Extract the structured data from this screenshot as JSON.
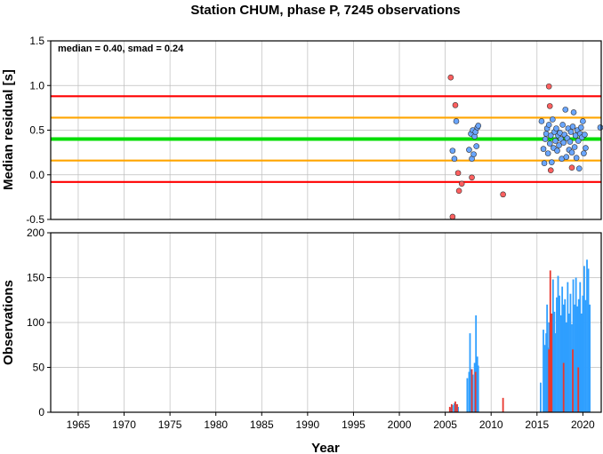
{
  "chart_data": [
    {
      "type": "scatter",
      "title": "Station CHUM, phase P, 7245 observations",
      "xlabel": "",
      "ylabel": "Median residual [s]",
      "xlim": [
        1962,
        2022
      ],
      "ylim": [
        -0.5,
        1.5
      ],
      "grid": true,
      "xticks": [
        1965,
        1970,
        1975,
        1980,
        1985,
        1990,
        1995,
        2000,
        2005,
        2010,
        2015,
        2020
      ],
      "yticks": [
        "-0.5",
        "0.0",
        "0.5",
        "1.0",
        "1.5"
      ],
      "annotation": "median = 0.40, smad = 0.24",
      "reference_lines": [
        {
          "y": 0.88,
          "color": "#ff0000"
        },
        {
          "y": 0.64,
          "color": "#ffa500"
        },
        {
          "y": 0.4,
          "color": "#00dd00"
        },
        {
          "y": 0.16,
          "color": "#ffa500"
        },
        {
          "y": -0.08,
          "color": "#ff0000"
        }
      ],
      "series": [
        {
          "color": "#6aa6ff",
          "points": [
            [
              2005.8,
              0.27
            ],
            [
              2006.0,
              0.18
            ],
            [
              2006.2,
              0.6
            ],
            [
              2007.6,
              0.28
            ],
            [
              2007.8,
              0.46
            ],
            [
              2007.9,
              0.18
            ],
            [
              2008.0,
              0.5
            ],
            [
              2008.1,
              0.23
            ],
            [
              2008.2,
              0.43
            ],
            [
              2008.3,
              0.48
            ],
            [
              2008.4,
              0.32
            ],
            [
              2008.5,
              0.53
            ],
            [
              2008.6,
              0.55
            ],
            [
              2015.5,
              0.6
            ],
            [
              2015.7,
              0.29
            ],
            [
              2015.8,
              0.13
            ],
            [
              2015.9,
              0.4
            ],
            [
              2016.0,
              0.46
            ],
            [
              2016.1,
              0.52
            ],
            [
              2016.2,
              0.24
            ],
            [
              2016.3,
              0.56
            ],
            [
              2016.4,
              0.35
            ],
            [
              2016.5,
              0.44
            ],
            [
              2016.6,
              0.14
            ],
            [
              2016.7,
              0.62
            ],
            [
              2016.8,
              0.3
            ],
            [
              2016.9,
              0.48
            ],
            [
              2017.0,
              0.38
            ],
            [
              2017.1,
              0.52
            ],
            [
              2017.2,
              0.27
            ],
            [
              2017.3,
              0.44
            ],
            [
              2017.4,
              0.33
            ],
            [
              2017.5,
              0.47
            ],
            [
              2017.6,
              0.4
            ],
            [
              2017.7,
              0.18
            ],
            [
              2017.8,
              0.56
            ],
            [
              2017.9,
              0.36
            ],
            [
              2018.0,
              0.45
            ],
            [
              2018.1,
              0.73
            ],
            [
              2018.2,
              0.2
            ],
            [
              2018.3,
              0.41
            ],
            [
              2018.4,
              0.52
            ],
            [
              2018.5,
              0.28
            ],
            [
              2018.6,
              0.37
            ],
            [
              2018.7,
              0.48
            ],
            [
              2018.8,
              0.25
            ],
            [
              2018.9,
              0.54
            ],
            [
              2019.0,
              0.7
            ],
            [
              2019.1,
              0.31
            ],
            [
              2019.2,
              0.44
            ],
            [
              2019.3,
              0.19
            ],
            [
              2019.4,
              0.5
            ],
            [
              2019.5,
              0.38
            ],
            [
              2019.6,
              0.07
            ],
            [
              2019.7,
              0.46
            ],
            [
              2019.8,
              0.53
            ],
            [
              2019.9,
              0.42
            ],
            [
              2020.0,
              0.6
            ],
            [
              2020.1,
              0.24
            ],
            [
              2020.2,
              0.45
            ],
            [
              2020.3,
              0.3
            ],
            [
              2021.9,
              0.53
            ]
          ]
        },
        {
          "color": "#ff6060",
          "points": [
            [
              2005.6,
              1.09
            ],
            [
              2005.8,
              -0.47
            ],
            [
              2006.1,
              0.78
            ],
            [
              2006.4,
              0.02
            ],
            [
              2006.5,
              -0.18
            ],
            [
              2006.8,
              -0.1
            ],
            [
              2007.9,
              -0.03
            ],
            [
              2011.3,
              -0.22
            ],
            [
              2016.3,
              0.99
            ],
            [
              2016.4,
              0.77
            ],
            [
              2016.5,
              0.05
            ],
            [
              2018.8,
              0.08
            ]
          ]
        }
      ]
    },
    {
      "type": "bar",
      "title": "",
      "xlabel": "Year",
      "ylabel": "Observations",
      "xlim": [
        1962,
        2022
      ],
      "ylim": [
        0,
        200
      ],
      "grid": true,
      "xticks": [
        1965,
        1970,
        1975,
        1980,
        1985,
        1990,
        1995,
        2000,
        2005,
        2010,
        2015,
        2020
      ],
      "yticks": [
        "0",
        "50",
        "100",
        "150",
        "200"
      ],
      "series": [
        {
          "color": "#2f9fff",
          "bars": [
            [
              2005.6,
              5
            ],
            [
              2005.8,
              8
            ],
            [
              2006.0,
              10
            ],
            [
              2006.2,
              9
            ],
            [
              2006.4,
              6
            ],
            [
              2007.4,
              38
            ],
            [
              2007.6,
              45
            ],
            [
              2007.7,
              88
            ],
            [
              2007.85,
              48
            ],
            [
              2008.0,
              42
            ],
            [
              2008.2,
              55
            ],
            [
              2008.35,
              108
            ],
            [
              2008.5,
              62
            ],
            [
              2008.6,
              52
            ],
            [
              2015.4,
              33
            ],
            [
              2015.7,
              92
            ],
            [
              2015.85,
              75
            ],
            [
              2016.0,
              88
            ],
            [
              2016.1,
              120
            ],
            [
              2016.2,
              72
            ],
            [
              2016.3,
              100
            ],
            [
              2016.45,
              82
            ],
            [
              2016.6,
              95
            ],
            [
              2016.75,
              148
            ],
            [
              2016.9,
              112
            ],
            [
              2017.0,
              88
            ],
            [
              2017.15,
              128
            ],
            [
              2017.3,
              152
            ],
            [
              2017.45,
              130
            ],
            [
              2017.6,
              108
            ],
            [
              2017.75,
              140
            ],
            [
              2017.9,
              120
            ],
            [
              2018.05,
              126
            ],
            [
              2018.2,
              100
            ],
            [
              2018.35,
              145
            ],
            [
              2018.5,
              110
            ],
            [
              2018.65,
              132
            ],
            [
              2018.8,
              98
            ],
            [
              2018.95,
              148
            ],
            [
              2019.1,
              120
            ],
            [
              2019.25,
              150
            ],
            [
              2019.4,
              118
            ],
            [
              2019.55,
              126
            ],
            [
              2019.7,
              145
            ],
            [
              2019.85,
              110
            ],
            [
              2020.0,
              130
            ],
            [
              2020.15,
              163
            ],
            [
              2020.3,
              125
            ],
            [
              2020.45,
              170
            ],
            [
              2020.6,
              160
            ],
            [
              2020.75,
              120
            ]
          ]
        },
        {
          "color": "#e8382f",
          "bars": [
            [
              2005.5,
              6
            ],
            [
              2005.7,
              9
            ],
            [
              2006.1,
              12
            ],
            [
              2006.3,
              9
            ],
            [
              2007.9,
              48
            ],
            [
              2008.3,
              45
            ],
            [
              2011.3,
              16
            ],
            [
              2016.3,
              70
            ],
            [
              2016.45,
              158
            ],
            [
              2016.6,
              110
            ],
            [
              2017.9,
              55
            ],
            [
              2018.9,
              70
            ],
            [
              2019.5,
              50
            ]
          ]
        }
      ]
    }
  ]
}
